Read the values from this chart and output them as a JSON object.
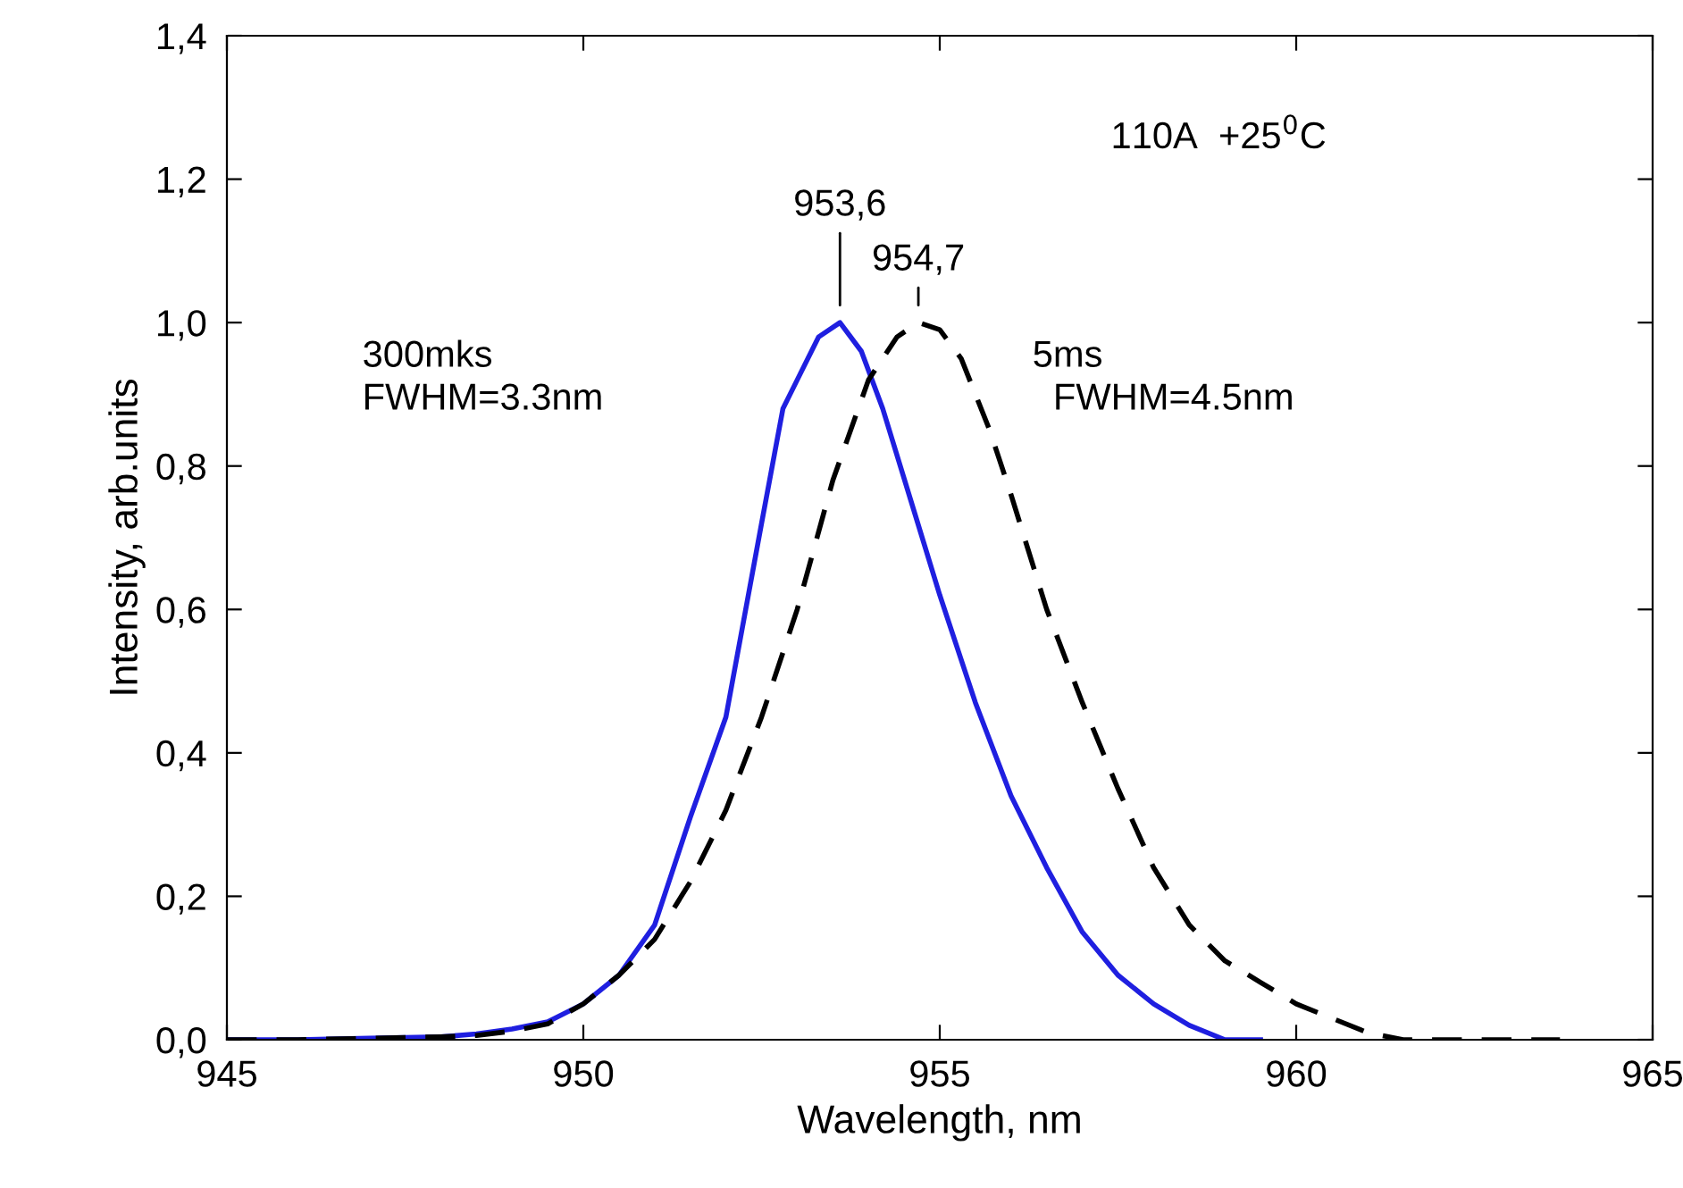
{
  "chart_data": {
    "type": "line",
    "xlabel": "Wavelength, nm",
    "ylabel": "Intensity, arb.units",
    "xlim": [
      945,
      965
    ],
    "xticks": [
      945,
      950,
      955,
      960,
      965
    ],
    "ylim": [
      0,
      1.4
    ],
    "yticks": [
      {
        "value": 0,
        "label": "0,0"
      },
      {
        "value": 0.2,
        "label": "0,2"
      },
      {
        "value": 0.4,
        "label": "0,4"
      },
      {
        "value": 0.6,
        "label": "0,6"
      },
      {
        "value": 0.8,
        "label": "0,8"
      },
      {
        "value": 1.0,
        "label": "1,0"
      },
      {
        "value": 1.2,
        "label": "1,2"
      },
      {
        "value": 1.4,
        "label": "1,4"
      }
    ],
    "grid": false,
    "legend": false,
    "marker": "none",
    "series": [
      {
        "color": "#1f1fe0",
        "line_style": "solid",
        "x": [
          945,
          946,
          947,
          948,
          948.5,
          949,
          949.5,
          950,
          950.5,
          951,
          951.5,
          952,
          952.5,
          952.8,
          953,
          953.3,
          953.6,
          953.9,
          954.2,
          954.6,
          955,
          955.5,
          956,
          956.5,
          957,
          957.5,
          958,
          958.5,
          959,
          959.5
        ],
        "values": [
          0,
          0,
          0.002,
          0.004,
          0.008,
          0.015,
          0.025,
          0.05,
          0.09,
          0.16,
          0.31,
          0.45,
          0.72,
          0.88,
          0.92,
          0.98,
          1.0,
          0.96,
          0.88,
          0.75,
          0.62,
          0.47,
          0.34,
          0.24,
          0.15,
          0.09,
          0.05,
          0.02,
          0.0,
          0.0
        ]
      },
      {
        "color": "#000000",
        "line_style": "dashed",
        "x": [
          945,
          946,
          947,
          948,
          948.5,
          949,
          949.5,
          950,
          950.5,
          951,
          951.5,
          952,
          952.5,
          953,
          953.5,
          954,
          954.4,
          954.7,
          955,
          955.3,
          955.7,
          956,
          956.5,
          957,
          957.5,
          958,
          958.5,
          959,
          959.5,
          960,
          960.5,
          961,
          961.5,
          962.5,
          963.7
        ],
        "values": [
          0,
          0,
          0.002,
          0.004,
          0.006,
          0.012,
          0.022,
          0.05,
          0.09,
          0.14,
          0.22,
          0.32,
          0.45,
          0.6,
          0.78,
          0.92,
          0.98,
          1.0,
          0.99,
          0.95,
          0.85,
          0.76,
          0.6,
          0.47,
          0.35,
          0.24,
          0.16,
          0.11,
          0.08,
          0.05,
          0.03,
          0.01,
          0.0,
          0.0,
          0.0
        ]
      }
    ],
    "annotations": [
      {
        "text": "953,6",
        "x": 953.6,
        "y": 1.0
      },
      {
        "text": "954,7",
        "x": 954.7,
        "y": 1.0
      },
      "110A  +25$^{0}$C",
      "300mks\nFWHM=3.3nm",
      "5ms\n  FWHM=4.5nm"
    ]
  }
}
